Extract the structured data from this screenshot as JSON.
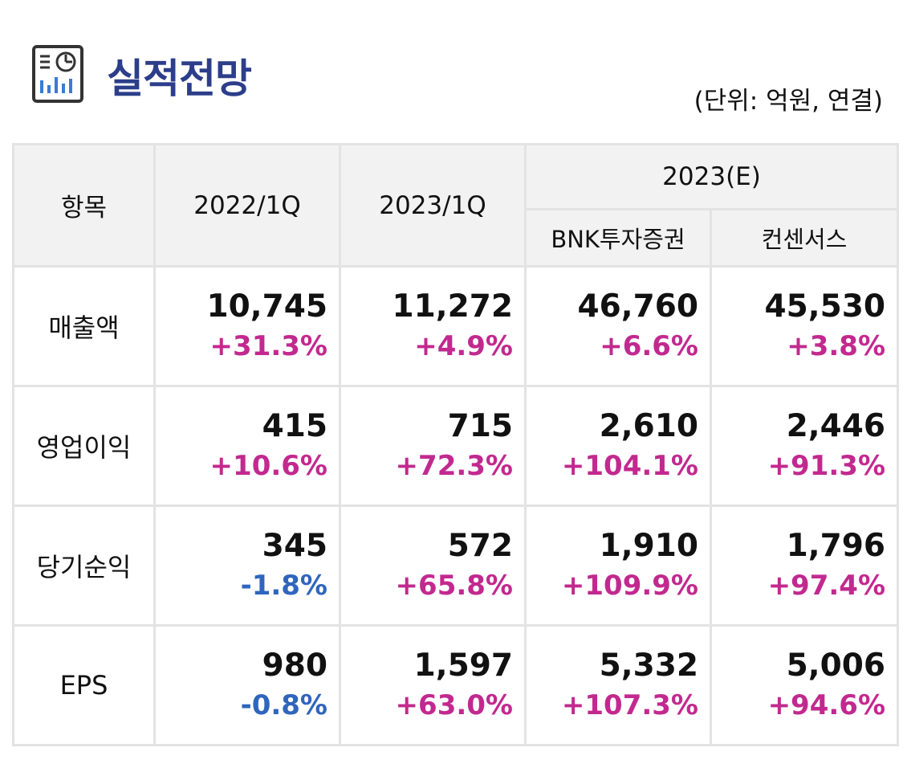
{
  "header": {
    "icon": "report-chart-icon",
    "title": "실적전망",
    "unit": "(단위: 억원, 연결)"
  },
  "colors": {
    "title": "#2c3e8a",
    "positive": "#c2298f",
    "negative": "#2f65bd",
    "header_bg": "#f2f2f2",
    "border": "#e3e3e3"
  },
  "table": {
    "columns": {
      "item": "항목",
      "c2022": "2022/1Q",
      "c2023": "2023/1Q",
      "est_group": "2023(E)",
      "bnk": "BNK투자증권",
      "consensus": "컨센서스"
    },
    "rows": [
      {
        "label": "매출액",
        "cells": [
          {
            "value": "10,745",
            "change": "+31.3%"
          },
          {
            "value": "11,272",
            "change": "+4.9%"
          },
          {
            "value": "46,760",
            "change": "+6.6%"
          },
          {
            "value": "45,530",
            "change": "+3.8%"
          }
        ]
      },
      {
        "label": "영업이익",
        "cells": [
          {
            "value": "415",
            "change": "+10.6%"
          },
          {
            "value": "715",
            "change": "+72.3%"
          },
          {
            "value": "2,610",
            "change": "+104.1%"
          },
          {
            "value": "2,446",
            "change": "+91.3%"
          }
        ]
      },
      {
        "label": "당기순익",
        "cells": [
          {
            "value": "345",
            "change": "-1.8%"
          },
          {
            "value": "572",
            "change": "+65.8%"
          },
          {
            "value": "1,910",
            "change": "+109.9%"
          },
          {
            "value": "1,796",
            "change": "+97.4%"
          }
        ]
      },
      {
        "label": "EPS",
        "cells": [
          {
            "value": "980",
            "change": "-0.8%"
          },
          {
            "value": "1,597",
            "change": "+63.0%"
          },
          {
            "value": "5,332",
            "change": "+107.3%"
          },
          {
            "value": "5,006",
            "change": "+94.6%"
          }
        ]
      }
    ]
  }
}
